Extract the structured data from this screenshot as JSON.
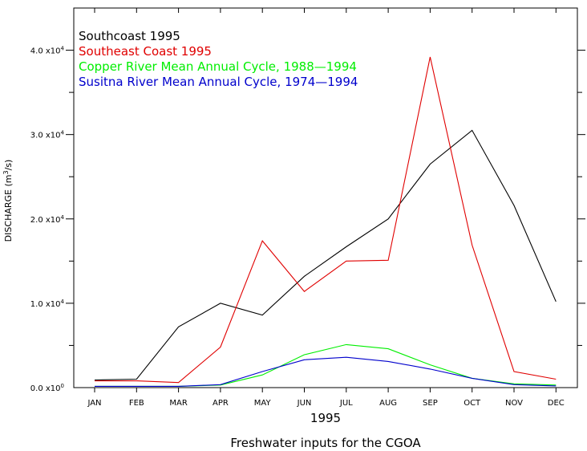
{
  "chart_data": {
    "type": "line",
    "xlabel": "1995",
    "ylabel": "DISCHARGE (m",
    "ylabel_sup": "3",
    "ylabel_tail": "/s)",
    "footer": "Freshwater inputs for the CGOA",
    "categories": [
      "JAN",
      "FEB",
      "MAR",
      "APR",
      "MAY",
      "JUN",
      "JUL",
      "AUG",
      "SEP",
      "OCT",
      "NOV",
      "DEC"
    ],
    "ylim": [
      0,
      45000
    ],
    "yticks": [
      {
        "value": 0,
        "mantissa": "0.0 x10",
        "exp": "0"
      },
      {
        "value": 10000,
        "mantissa": "1.0 x10",
        "exp": "4"
      },
      {
        "value": 20000,
        "mantissa": "2.0 x10",
        "exp": "4"
      },
      {
        "value": 30000,
        "mantissa": "3.0 x10",
        "exp": "4"
      },
      {
        "value": 40000,
        "mantissa": "4.0 x10",
        "exp": "4"
      }
    ],
    "legend_position": "top-left",
    "series": [
      {
        "name": "Southcoast 1995",
        "color": "#000000",
        "values": [
          900,
          1000,
          7200,
          10000,
          8600,
          13200,
          16700,
          20000,
          26500,
          30500,
          21600,
          10200
        ]
      },
      {
        "name": "Southeast Coast 1995",
        "color": "#e00000",
        "values": [
          800,
          800,
          600,
          4800,
          17400,
          11400,
          15000,
          15100,
          39200,
          16900,
          1900,
          1000
        ]
      },
      {
        "name": "Copper River Mean Annual Cycle, 1988—1994",
        "color": "#00ee00",
        "values": [
          150,
          150,
          150,
          300,
          1500,
          3900,
          5100,
          4600,
          2700,
          1100,
          450,
          300
        ]
      },
      {
        "name": "Susitna River Mean Annual Cycle, 1974—1994",
        "color": "#0000cc",
        "values": [
          150,
          150,
          150,
          350,
          1900,
          3300,
          3600,
          3100,
          2200,
          1100,
          350,
          200
        ]
      }
    ]
  }
}
